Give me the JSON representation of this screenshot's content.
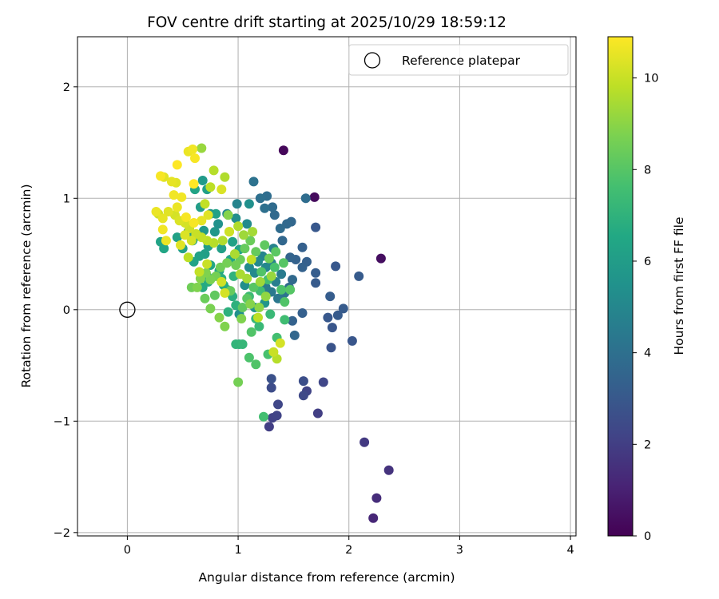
{
  "chart_data": {
    "type": "scatter",
    "title": "FOV centre drift starting at 2025/10/29 18:59:12",
    "xlabel": "Angular distance from reference (arcmin)",
    "ylabel": "Rotation from reference (arcmin)",
    "xlim": [
      -0.45,
      4.05
    ],
    "ylim": [
      -2.03,
      2.45
    ],
    "xticks": [
      0,
      1,
      2,
      3,
      4
    ],
    "yticks": [
      -2,
      -1,
      0,
      1,
      2
    ],
    "grid": true,
    "colormap": "viridis",
    "colorbar": {
      "label": "Hours from first FF file",
      "min": 0,
      "max": 10.9,
      "ticks": [
        0,
        2,
        4,
        6,
        8,
        10
      ]
    },
    "legend": {
      "location": "top-right",
      "entries": [
        "Reference platepar"
      ]
    },
    "reference_point": {
      "x": 0,
      "y": 0,
      "label": "Reference platepar"
    },
    "points": [
      [
        1.41,
        1.43,
        0.2
      ],
      [
        1.69,
        1.01,
        0.3
      ],
      [
        2.29,
        0.46,
        0.4
      ],
      [
        2.22,
        -1.87,
        1.2
      ],
      [
        2.25,
        -1.69,
        1.4
      ],
      [
        2.36,
        -1.44,
        1.6
      ],
      [
        2.14,
        -1.19,
        1.8
      ],
      [
        1.28,
        -1.05,
        2.0
      ],
      [
        1.31,
        -0.97,
        2.1
      ],
      [
        1.35,
        -0.95,
        2.2
      ],
      [
        1.72,
        -0.93,
        2.0
      ],
      [
        1.36,
        -0.85,
        2.3
      ],
      [
        1.59,
        -0.77,
        2.4
      ],
      [
        1.62,
        -0.73,
        2.2
      ],
      [
        1.3,
        -0.7,
        2.5
      ],
      [
        1.77,
        -0.65,
        2.3
      ],
      [
        1.59,
        -0.64,
        2.6
      ],
      [
        1.3,
        -0.62,
        2.7
      ],
      [
        1.84,
        -0.34,
        2.8
      ],
      [
        2.03,
        -0.28,
        2.9
      ],
      [
        1.85,
        -0.16,
        2.9
      ],
      [
        1.81,
        -0.07,
        3.0
      ],
      [
        1.9,
        -0.05,
        3.1
      ],
      [
        1.95,
        0.01,
        3.1
      ],
      [
        1.83,
        0.12,
        3.2
      ],
      [
        1.58,
        -0.03,
        3.3
      ],
      [
        1.49,
        -0.1,
        3.4
      ],
      [
        1.51,
        -0.23,
        3.6
      ],
      [
        2.09,
        0.3,
        3.1
      ],
      [
        1.88,
        0.39,
        3.0
      ],
      [
        1.7,
        0.24,
        3.1
      ],
      [
        1.7,
        0.33,
        3.2
      ],
      [
        1.62,
        0.43,
        3.3
      ],
      [
        1.58,
        0.38,
        3.4
      ],
      [
        1.58,
        0.56,
        3.3
      ],
      [
        1.52,
        0.45,
        3.4
      ],
      [
        1.47,
        0.47,
        3.5
      ],
      [
        1.4,
        0.62,
        3.6
      ],
      [
        1.48,
        0.79,
        3.6
      ],
      [
        1.44,
        0.77,
        3.7
      ],
      [
        1.38,
        0.73,
        3.8
      ],
      [
        1.33,
        0.85,
        3.7
      ],
      [
        1.31,
        0.92,
        3.8
      ],
      [
        1.26,
        1.02,
        3.9
      ],
      [
        1.2,
        1.0,
        4.0
      ],
      [
        1.24,
        0.91,
        4.0
      ],
      [
        1.14,
        1.15,
        4.1
      ],
      [
        1.61,
        1.0,
        3.9
      ],
      [
        1.7,
        0.74,
        3.0
      ],
      [
        1.49,
        0.27,
        3.7
      ],
      [
        1.46,
        0.2,
        3.8
      ],
      [
        1.42,
        0.15,
        4.2
      ],
      [
        1.36,
        0.1,
        4.3
      ],
      [
        1.3,
        0.16,
        4.4
      ],
      [
        1.25,
        0.2,
        4.5
      ],
      [
        1.34,
        0.25,
        4.6
      ],
      [
        1.39,
        0.32,
        4.5
      ],
      [
        1.3,
        0.42,
        4.7
      ],
      [
        1.32,
        0.55,
        4.8
      ],
      [
        1.22,
        0.48,
        4.9
      ],
      [
        1.25,
        0.38,
        5.0
      ],
      [
        1.15,
        0.33,
        5.1
      ],
      [
        1.18,
        0.43,
        5.1
      ],
      [
        1.1,
        0.38,
        5.2
      ],
      [
        1.06,
        0.22,
        5.3
      ],
      [
        1.01,
        -0.04,
        5.4
      ],
      [
        1.15,
        0.02,
        5.5
      ],
      [
        1.24,
        0.06,
        5.6
      ],
      [
        1.08,
        0.77,
        5.2
      ],
      [
        0.98,
        0.82,
        5.3
      ],
      [
        1.1,
        0.95,
        5.4
      ],
      [
        0.99,
        0.95,
        4.9
      ],
      [
        0.9,
        0.86,
        5.0
      ],
      [
        0.82,
        0.77,
        5.5
      ],
      [
        0.75,
        0.86,
        5.6
      ],
      [
        0.79,
        0.7,
        5.7
      ],
      [
        0.69,
        0.71,
        5.8
      ],
      [
        0.62,
        0.66,
        5.9
      ],
      [
        0.73,
        0.57,
        6.0
      ],
      [
        0.85,
        0.55,
        6.1
      ],
      [
        0.95,
        0.61,
        6.2
      ],
      [
        1.01,
        0.54,
        6.3
      ],
      [
        0.93,
        0.45,
        6.4
      ],
      [
        0.7,
        0.5,
        6.1
      ],
      [
        0.65,
        0.48,
        6.2
      ],
      [
        0.6,
        0.43,
        6.3
      ],
      [
        0.75,
        0.4,
        6.4
      ],
      [
        0.83,
        0.35,
        6.5
      ],
      [
        0.72,
        0.3,
        6.6
      ],
      [
        0.68,
        0.2,
        6.6
      ],
      [
        0.73,
        0.25,
        6.7
      ],
      [
        0.87,
        0.22,
        6.7
      ],
      [
        0.95,
        0.12,
        6.8
      ],
      [
        0.98,
        0.04,
        6.9
      ],
      [
        0.91,
        -0.02,
        6.9
      ],
      [
        0.85,
        0.28,
        6.8
      ],
      [
        0.9,
        0.18,
        6.5
      ],
      [
        0.3,
        0.61,
        6.3
      ],
      [
        0.33,
        0.55,
        6.4
      ],
      [
        0.55,
        0.7,
        6.0
      ],
      [
        0.5,
        0.55,
        6.1
      ],
      [
        0.45,
        0.65,
        6.2
      ],
      [
        0.59,
        0.62,
        6.2
      ],
      [
        0.66,
        0.92,
        6.0
      ],
      [
        0.68,
        1.16,
        5.9
      ],
      [
        0.72,
        1.08,
        6.1
      ],
      [
        0.61,
        1.08,
        6.3
      ],
      [
        0.8,
        0.86,
        6.2
      ],
      [
        0.96,
        0.3,
        7.0
      ],
      [
        0.98,
        -0.31,
        7.1
      ],
      [
        1.04,
        -0.31,
        7.2
      ],
      [
        1.01,
        -0.31,
        7.0
      ],
      [
        1.16,
        -0.08,
        7.2
      ],
      [
        1.19,
        -0.15,
        7.3
      ],
      [
        1.29,
        -0.04,
        7.3
      ],
      [
        1.42,
        -0.09,
        7.5
      ],
      [
        1.35,
        -0.25,
        7.6
      ],
      [
        1.27,
        -0.4,
        7.7
      ],
      [
        1.1,
        -0.43,
        7.8
      ],
      [
        1.16,
        -0.49,
        7.9
      ],
      [
        1.0,
        -0.65,
        8.6
      ],
      [
        1.23,
        -0.96,
        7.6
      ],
      [
        1.12,
        -0.2,
        7.9
      ],
      [
        1.1,
        0.12,
        7.4
      ],
      [
        1.2,
        0.17,
        7.5
      ],
      [
        1.27,
        0.27,
        7.6
      ],
      [
        1.33,
        0.38,
        7.7
      ],
      [
        1.39,
        0.18,
        7.8
      ],
      [
        1.42,
        0.07,
        7.9
      ],
      [
        1.47,
        0.18,
        8.0
      ],
      [
        1.41,
        0.42,
        8.0
      ],
      [
        1.34,
        0.52,
        8.1
      ],
      [
        1.24,
        0.58,
        8.2
      ],
      [
        1.16,
        0.52,
        8.3
      ],
      [
        1.11,
        0.62,
        8.4
      ],
      [
        1.06,
        0.55,
        8.3
      ],
      [
        1.02,
        0.45,
        8.4
      ],
      [
        0.98,
        0.4,
        8.5
      ],
      [
        0.9,
        0.42,
        8.6
      ],
      [
        0.84,
        0.38,
        8.5
      ],
      [
        0.8,
        0.3,
        8.6
      ],
      [
        0.75,
        0.27,
        8.7
      ],
      [
        0.71,
        0.33,
        8.8
      ],
      [
        0.66,
        0.28,
        8.9
      ],
      [
        0.63,
        0.2,
        8.8
      ],
      [
        0.75,
        0.01,
        8.7
      ],
      [
        0.83,
        -0.07,
        8.9
      ],
      [
        0.88,
        -0.15,
        8.8
      ],
      [
        1.03,
        -0.08,
        8.8
      ],
      [
        1.11,
        0.05,
        8.9
      ],
      [
        1.19,
        0.02,
        9.0
      ],
      [
        1.25,
        0.12,
        9.1
      ],
      [
        1.3,
        0.3,
        9.2
      ],
      [
        1.2,
        0.25,
        9.3
      ],
      [
        1.08,
        0.28,
        9.4
      ],
      [
        1.02,
        0.32,
        9.5
      ],
      [
        0.97,
        0.5,
        9.5
      ],
      [
        1.05,
        0.67,
        9.3
      ],
      [
        1.13,
        0.7,
        9.4
      ],
      [
        1.0,
        0.75,
        9.6
      ],
      [
        0.92,
        0.7,
        9.5
      ],
      [
        0.86,
        0.62,
        9.6
      ],
      [
        0.78,
        0.6,
        9.7
      ],
      [
        0.72,
        0.62,
        9.8
      ],
      [
        0.67,
        0.65,
        9.9
      ],
      [
        0.62,
        0.68,
        10.0
      ],
      [
        0.56,
        0.73,
        10.1
      ],
      [
        0.52,
        0.78,
        10.2
      ],
      [
        0.47,
        0.8,
        10.3
      ],
      [
        0.43,
        0.85,
        10.2
      ],
      [
        0.37,
        0.88,
        10.4
      ],
      [
        0.32,
        0.82,
        10.5
      ],
      [
        0.28,
        0.86,
        10.1
      ],
      [
        0.26,
        0.88,
        10.6
      ],
      [
        0.33,
        1.19,
        10.4
      ],
      [
        0.4,
        1.15,
        10.5
      ],
      [
        0.44,
        1.14,
        10.4
      ],
      [
        0.45,
        0.92,
        10.6
      ],
      [
        0.42,
        1.03,
        10.7
      ],
      [
        0.49,
        1.01,
        10.7
      ],
      [
        0.55,
        1.42,
        10.6
      ],
      [
        0.59,
        1.44,
        10.7
      ],
      [
        0.61,
        1.36,
        10.8
      ],
      [
        0.67,
        1.45,
        9.2
      ],
      [
        0.53,
        0.83,
        10.8
      ],
      [
        0.6,
        0.78,
        10.8
      ],
      [
        0.67,
        0.8,
        10.5
      ],
      [
        0.73,
        0.85,
        10.4
      ],
      [
        0.7,
        0.95,
        9.9
      ],
      [
        0.75,
        1.1,
        9.8
      ],
      [
        0.78,
        1.25,
        9.7
      ],
      [
        0.88,
        1.19,
        9.6
      ],
      [
        0.85,
        1.08,
        10.3
      ],
      [
        0.6,
        1.13,
        10.9
      ],
      [
        0.58,
        0.62,
        10.2
      ],
      [
        0.52,
        0.67,
        10.3
      ],
      [
        0.48,
        0.58,
        10.4
      ],
      [
        0.35,
        0.62,
        10.6
      ],
      [
        0.32,
        0.72,
        10.7
      ],
      [
        0.3,
        1.2,
        10.8
      ],
      [
        0.45,
        1.3,
        10.9
      ],
      [
        0.55,
        0.47,
        9.8
      ],
      [
        0.65,
        0.34,
        9.9
      ],
      [
        0.72,
        0.41,
        10.0
      ],
      [
        0.85,
        0.25,
        10.1
      ],
      [
        0.88,
        0.15,
        10.2
      ],
      [
        0.92,
        0.7,
        10.1
      ],
      [
        1.12,
        0.45,
        9.9
      ],
      [
        1.18,
        -0.07,
        9.8
      ],
      [
        1.32,
        -0.38,
        10.0
      ],
      [
        1.35,
        -0.44,
        9.7
      ],
      [
        1.38,
        -0.3,
        10.2
      ],
      [
        1.04,
        0.02,
        8.2
      ],
      [
        1.08,
        0.1,
        8.1
      ],
      [
        1.14,
        0.2,
        8.0
      ],
      [
        1.21,
        0.34,
        7.9
      ],
      [
        1.28,
        0.46,
        8.5
      ],
      [
        0.93,
        0.17,
        8.3
      ],
      [
        0.79,
        0.13,
        8.2
      ],
      [
        0.7,
        0.1,
        8.4
      ],
      [
        0.58,
        0.2,
        8.5
      ],
      [
        0.91,
        0.85,
        8.9
      ]
    ]
  }
}
